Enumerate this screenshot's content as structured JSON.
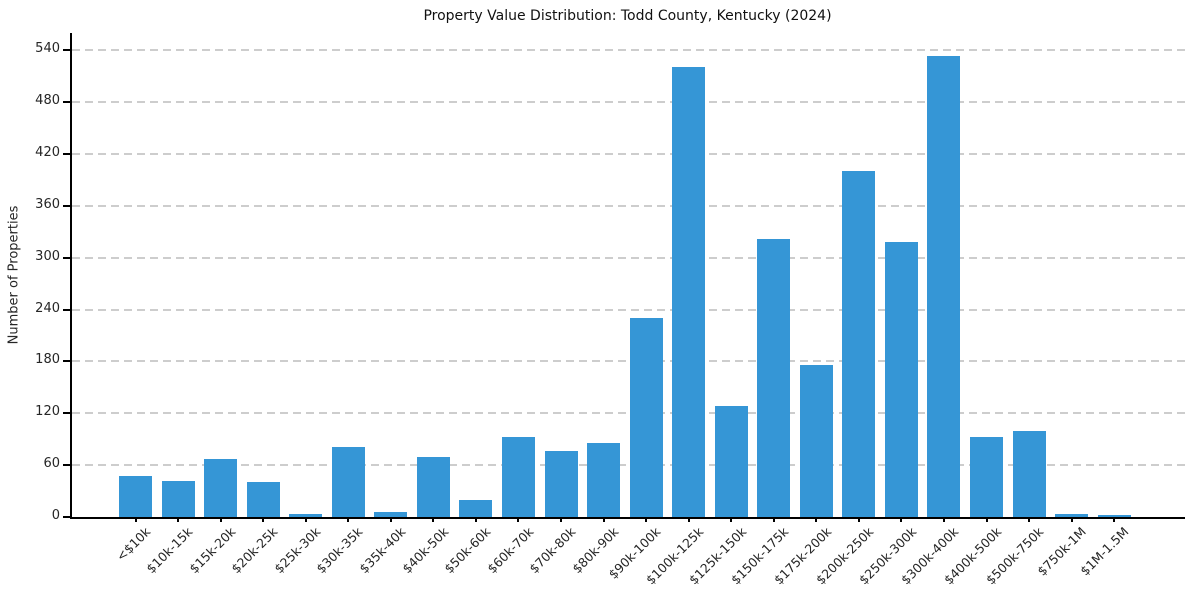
{
  "chart_data": {
    "type": "bar",
    "title": "Property Value Distribution: Todd County, Kentucky (2024)",
    "xlabel": "",
    "ylabel": "Number of Properties",
    "categories": [
      "<$10k",
      "$10k-15k",
      "$15k-20k",
      "$20k-25k",
      "$25k-30k",
      "$30k-35k",
      "$35k-40k",
      "$40k-50k",
      "$50k-60k",
      "$60k-70k",
      "$70k-80k",
      "$80k-90k",
      "$90k-100k",
      "$100k-125k",
      "$125k-150k",
      "$150k-175k",
      "$175k-200k",
      "$200k-250k",
      "$250k-300k",
      "$300k-400k",
      "$400k-500k",
      "$500k-750k",
      "$750k-1M",
      "$1M-1.5M"
    ],
    "values": [
      48,
      42,
      67,
      40,
      4,
      81,
      6,
      70,
      20,
      93,
      76,
      86,
      230,
      521,
      128,
      322,
      176,
      400,
      318,
      533,
      93,
      99,
      4,
      2
    ],
    "yticks": [
      0,
      60,
      120,
      180,
      240,
      300,
      360,
      420,
      480,
      540
    ],
    "ylim": [
      0,
      560
    ],
    "grid": "horizontal-dashed",
    "legend": "none",
    "bar_color": "#3596d6",
    "axis_color": "#000000",
    "grid_color": "#cdcdcd"
  }
}
